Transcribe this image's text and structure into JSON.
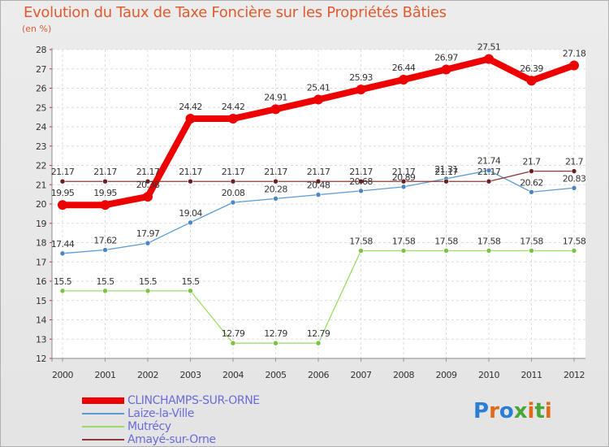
{
  "title": "Evolution du Taux de Taxe Foncière sur les Propriétés Bâties",
  "unit": "(en %)",
  "logo": {
    "text": "Proxiti",
    "colors": [
      "#2a7fd4",
      "#e06a1a",
      "#2a7fd4",
      "#49a638",
      "#e06a1a",
      "#49a638",
      "#e06a1a"
    ]
  },
  "chart_data": {
    "type": "line",
    "title": "Evolution du Taux de Taxe Foncière sur les Propriétés Bâties",
    "ylabel": "(en %)",
    "xlabel": "",
    "ylim": [
      12,
      28
    ],
    "yticks": [
      12,
      13,
      14,
      15,
      16,
      17,
      18,
      19,
      20,
      21,
      22,
      23,
      24,
      25,
      26,
      27,
      28
    ],
    "categories": [
      "2000",
      "2001",
      "2002",
      "2003",
      "2004",
      "2005",
      "2006",
      "2007",
      "2008",
      "2009",
      "2010",
      "2011",
      "2012"
    ],
    "grid": true,
    "series": [
      {
        "name": "CLINCHAMPS-SUR-ORNE",
        "color": "#ee0000",
        "values": [
          19.95,
          19.95,
          20.38,
          24.42,
          24.42,
          24.91,
          25.41,
          25.93,
          26.44,
          26.97,
          27.51,
          26.39,
          27.18
        ],
        "labels": [
          "19.95",
          "19.95",
          "20.38",
          "24.42",
          "24.42",
          "24.91",
          "25.41",
          "25.93",
          "26.44",
          "26.97",
          "27.51",
          "26.39",
          "27.18"
        ]
      },
      {
        "name": "Laize-la-Ville",
        "color": "#5b9bd5",
        "values": [
          17.44,
          17.62,
          17.97,
          19.04,
          20.08,
          20.28,
          20.48,
          20.68,
          20.89,
          21.31,
          21.74,
          20.62,
          20.83
        ],
        "labels": [
          "17.44",
          "17.62",
          "17.97",
          "19.04",
          "20.08",
          "20.28",
          "20.48",
          "20.68",
          "20.89",
          "21.31",
          "21.74",
          "20.62",
          "20.83"
        ]
      },
      {
        "name": "Mutrécy",
        "color": "#99dd66",
        "values": [
          15.5,
          15.5,
          15.5,
          15.5,
          12.79,
          12.79,
          12.79,
          17.58,
          17.58,
          17.58,
          17.58,
          17.58,
          17.58
        ],
        "labels": [
          "15.5",
          "15.5",
          "15.5",
          "15.5",
          "12.79",
          "12.79",
          "12.79",
          "17.58",
          "17.58",
          "17.58",
          "17.58",
          "17.58",
          "17.58"
        ]
      },
      {
        "name": "Amayé-sur-Orne",
        "color": "#8b3a3a",
        "values": [
          21.17,
          21.17,
          21.17,
          21.17,
          21.17,
          21.17,
          21.17,
          21.17,
          21.17,
          21.17,
          21.17,
          21.7,
          21.7
        ],
        "labels": [
          "21.17",
          "21.17",
          "21.17",
          "21.17",
          "21.17",
          "21.17",
          "21.17",
          "21.17",
          "21.17",
          "21.17",
          "21.17",
          "21.7",
          "21.7"
        ]
      }
    ]
  }
}
